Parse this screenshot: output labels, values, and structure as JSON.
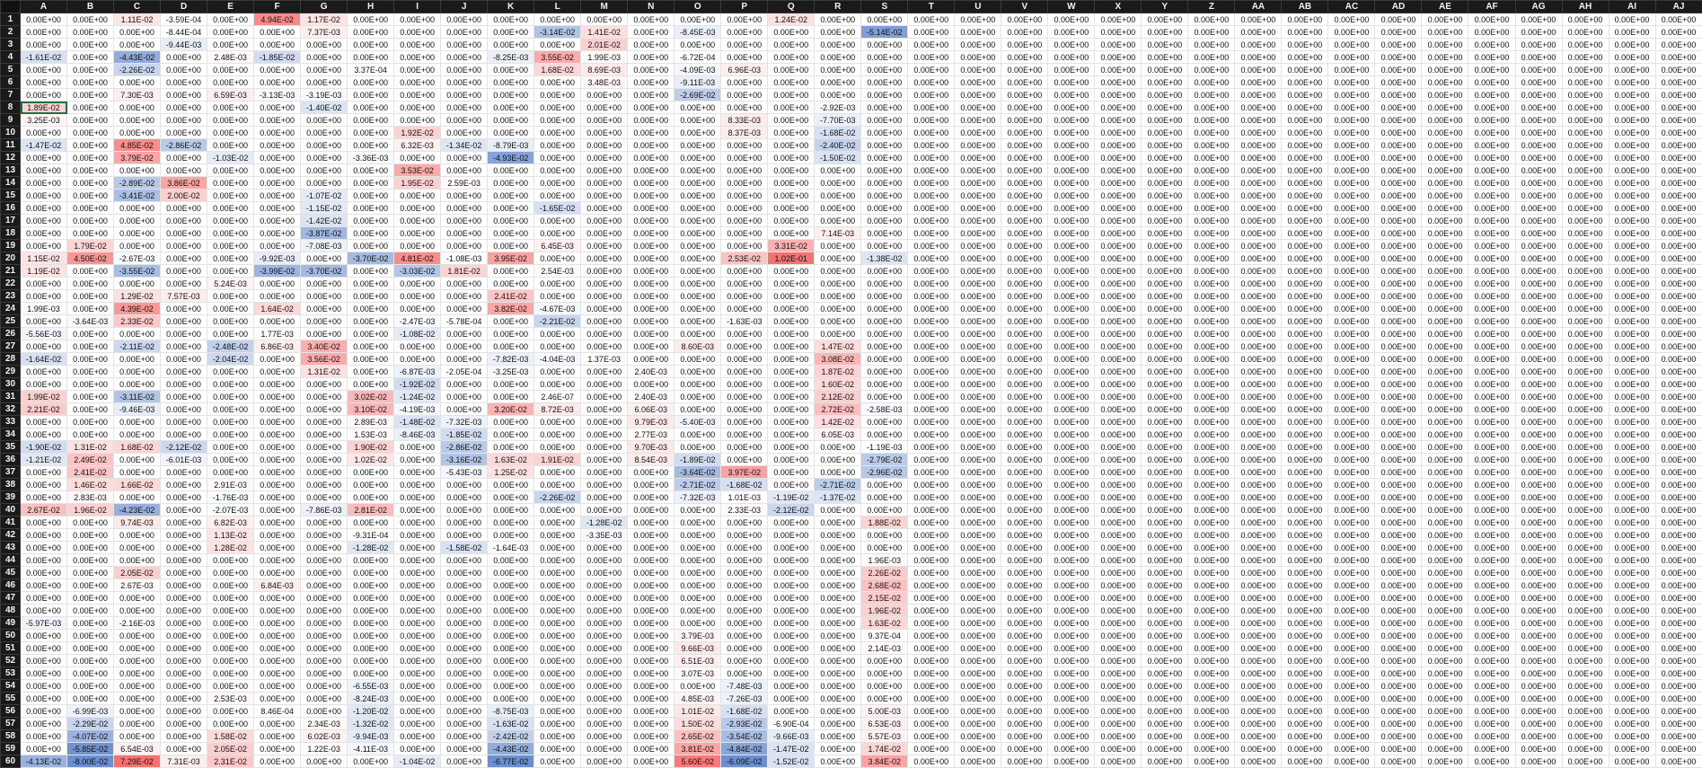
{
  "sheet": {
    "columns": [
      "A",
      "B",
      "C",
      "D",
      "E",
      "F",
      "G",
      "H",
      "I",
      "J",
      "K",
      "L",
      "M",
      "N",
      "O",
      "P",
      "Q",
      "R",
      "S",
      "T",
      "U",
      "V",
      "W",
      "X",
      "Y",
      "Z",
      "AA",
      "AB",
      "AC",
      "AD",
      "AE",
      "AF",
      "AG",
      "AH",
      "AI",
      "AJ"
    ],
    "colors": {
      "positive_strong": "#f87171",
      "negative_strong": "#6b8fcf",
      "zero": "#ffffff",
      "grid": "#e3e3e3",
      "header_bg": "#1a1a1a",
      "header_fg": "#f2f2f2",
      "selection": "#217346"
    },
    "selected_cell": "A8",
    "rows": [
      {
        "label": "1",
        "values": {
          "C": "1.11E-02",
          "D": "-3.59E-04",
          "F": "4.94E-02",
          "G": "1.17E-02",
          "Q": "1.24E-02"
        }
      },
      {
        "label": "2",
        "values": {
          "D": "-8.44E-04",
          "G": "7.37E-03",
          "L": "-3.14E-02",
          "M": "1.41E-02",
          "O": "-8.45E-03",
          "S": "-5.14E-02"
        }
      },
      {
        "label": "3",
        "values": {
          "C": "0.00E+00",
          "D": "-9.44E-03",
          "L": "0.00E+00",
          "M": "2.01E-02"
        }
      },
      {
        "label": "4",
        "values": {
          "A": "-1.61E-02",
          "C": "-4.43E-02",
          "E": "2.48E-03",
          "F": "-1.85E-02",
          "K": "-8.25E-03",
          "L": "3.55E-02",
          "M": "1.99E-03",
          "O": "-6.72E-04"
        }
      },
      {
        "label": "5",
        "values": {
          "C": "-2.26E-02",
          "H": "3.37E-04",
          "L": "1.68E-02",
          "M": "8.69E-03",
          "O": "-4.09E-03",
          "P": "6.96E-03"
        }
      },
      {
        "label": "6",
        "values": {
          "M": "3.48E-03",
          "O": "-9.11E-03"
        }
      },
      {
        "label": "7",
        "values": {
          "C": "7.30E-03",
          "E": "6.59E-03",
          "F": "-3.13E-03",
          "G": "-3.19E-03",
          "O": "-2.69E-02"
        }
      },
      {
        "label": "8",
        "values": {
          "A": "1.89E-02",
          "G": "-1.40E-02",
          "R": "-2.92E-03"
        }
      },
      {
        "label": "9",
        "values": {
          "A": "3.25E-03",
          "P": "8.33E-03",
          "R": "-7.70E-03"
        }
      },
      {
        "label": "10",
        "values": {
          "I": "1.92E-02",
          "P": "8.37E-03",
          "R": "-1.68E-02"
        }
      },
      {
        "label": "11",
        "values": {
          "A": "-1.47E-02",
          "C": "4.85E-02",
          "D": "-2.86E-02",
          "I": "6.32E-03",
          "J": "-1.34E-02",
          "K": "-8.79E-03",
          "R": "-2.40E-02"
        }
      },
      {
        "label": "12",
        "values": {
          "C": "3.79E-02",
          "E": "-1.03E-02",
          "H": "-3.36E-03",
          "K": "-4.93E-02",
          "R": "-1.50E-02"
        }
      },
      {
        "label": "13",
        "values": {
          "I": "3.53E-02"
        }
      },
      {
        "label": "14",
        "values": {
          "C": "-2.89E-02",
          "D": "3.86E-02",
          "I": "1.95E-02",
          "J": "2.59E-03"
        }
      },
      {
        "label": "15",
        "values": {
          "C": "-3.41E-02",
          "D": "2.00E-02",
          "G": "-1.07E-02"
        }
      },
      {
        "label": "16",
        "values": {
          "G": "-1.15E-02",
          "L": "-1.65E-02"
        }
      },
      {
        "label": "17",
        "values": {
          "G": "-1.42E-02"
        }
      },
      {
        "label": "18",
        "values": {
          "G": "-3.87E-02",
          "R": "7.14E-03"
        }
      },
      {
        "label": "19",
        "values": {
          "B": "1.79E-02",
          "G": "-7.08E-03",
          "L": "6.45E-03",
          "Q": "3.31E-02"
        }
      },
      {
        "label": "20",
        "values": {
          "A": "1.15E-02",
          "B": "4.50E-02",
          "C": "-2.67E-03",
          "F": "-9.92E-03",
          "H": "-3.70E-02",
          "I": "4.81E-02",
          "J": "-1.08E-03",
          "K": "3.95E-02",
          "P": "2.53E-02",
          "Q": "1.02E-01",
          "S": "-1.38E-02"
        }
      },
      {
        "label": "21",
        "values": {
          "A": "1.19E-02",
          "C": "-3.55E-02",
          "F": "-3.99E-02",
          "G": "-3.70E-02",
          "I": "-3.03E-02",
          "J": "1.81E-02",
          "L": "2.54E-03"
        }
      },
      {
        "label": "22",
        "values": {
          "E": "5.24E-03"
        }
      },
      {
        "label": "23",
        "values": {
          "C": "1.29E-02",
          "D": "7.57E-03",
          "K": "2.41E-02"
        }
      },
      {
        "label": "24",
        "values": {
          "A": "1.99E-03",
          "C": "4.39E-02",
          "F": "1.64E-02",
          "K": "3.82E-02",
          "L": "-4.67E-03"
        }
      },
      {
        "label": "25",
        "values": {
          "B": "-3.64E-03",
          "C": "2.33E-02",
          "I": "-2.47E-03",
          "J": "-5.78E-04",
          "L": "-2.21E-02",
          "P": "-1.63E-03"
        }
      },
      {
        "label": "26",
        "values": {
          "A": "-5.56E-03",
          "F": "1.77E-03",
          "I": "-1.08E-02"
        }
      },
      {
        "label": "27",
        "values": {
          "C": "-2.11E-02",
          "E": "-2.48E-02",
          "F": "6.86E-03",
          "G": "3.40E-02",
          "O": "8.60E-03",
          "R": "1.47E-02"
        }
      },
      {
        "label": "28",
        "values": {
          "A": "-1.64E-02",
          "E": "-2.04E-02",
          "G": "3.56E-02",
          "K": "-7.82E-03",
          "L": "-4.04E-03",
          "M": "1.37E-03",
          "R": "3.08E-02"
        }
      },
      {
        "label": "29",
        "values": {
          "G": "1.31E-02",
          "I": "-6.87E-03",
          "J": "-2.05E-04",
          "K": "-3.25E-03",
          "N": "2.40E-03",
          "R": "1.87E-02"
        }
      },
      {
        "label": "30",
        "values": {
          "I": "-1.92E-02",
          "R": "1.60E-02"
        }
      },
      {
        "label": "31",
        "values": {
          "A": "1.99E-02",
          "C": "-3.11E-02",
          "H": "3.02E-02",
          "I": "-1.24E-02",
          "L": "2.46E-07",
          "N": "2.40E-03",
          "R": "2.12E-02"
        }
      },
      {
        "label": "32",
        "values": {
          "A": "2.21E-02",
          "C": "-9.46E-03",
          "H": "3.10E-02",
          "I": "-4.19E-03",
          "K": "3.20E-02",
          "L": "8.72E-03",
          "N": "6.06E-03",
          "R": "2.72E-02",
          "S": "-2.58E-03"
        }
      },
      {
        "label": "33",
        "values": {
          "H": "2.89E-03",
          "I": "-1.48E-02",
          "J": "-7.32E-03",
          "N": "9.79E-03",
          "O": "-5.40E-03",
          "R": "1.42E-02"
        }
      },
      {
        "label": "34",
        "values": {
          "H": "1.53E-03",
          "I": "-8.46E-03",
          "J": "-1.85E-02",
          "N": "2.77E-03",
          "R": "6.05E-03"
        }
      },
      {
        "label": "35",
        "values": {
          "A": "-1.90E-02",
          "B": "1.31E-02",
          "C": "1.68E-02",
          "D": "-2.12E-02",
          "H": "1.90E-02",
          "J": "-2.86E-02",
          "N": "9.70E-03",
          "S": "-1.19E-03"
        }
      },
      {
        "label": "36",
        "values": {
          "A": "-1.21E-02",
          "B": "2.49E-02",
          "D": "-6.01E-03",
          "H": "1.02E-02",
          "J": "-3.16E-02",
          "K": "1.63E-02",
          "L": "1.91E-02",
          "N": "8.54E-03",
          "O": "-1.89E-02",
          "S": "-2.79E-02"
        }
      },
      {
        "label": "37",
        "values": {
          "B": "2.41E-02",
          "J": "-5.43E-03",
          "K": "1.25E-02",
          "O": "-3.64E-02",
          "P": "3.97E-02",
          "S": "-2.96E-02"
        }
      },
      {
        "label": "38",
        "values": {
          "B": "1.46E-02",
          "C": "1.66E-02",
          "E": "2.91E-03",
          "O": "-2.71E-02",
          "P": "-1.68E-02",
          "R": "-2.71E-02"
        }
      },
      {
        "label": "39",
        "values": {
          "B": "2.83E-03",
          "E": "-1.76E-03",
          "L": "-2.26E-02",
          "O": "-7.32E-03",
          "P": "1.01E-03",
          "Q": "-1.19E-02",
          "R": "-1.37E-02"
        }
      },
      {
        "label": "40",
        "values": {
          "A": "2.67E-02",
          "B": "1.96E-02",
          "C": "-4.23E-02",
          "E": "-2.07E-03",
          "G": "-7.86E-03",
          "H": "2.81E-02",
          "P": "2.33E-03",
          "Q": "-2.12E-02"
        }
      },
      {
        "label": "41",
        "values": {
          "C": "9.74E-03",
          "E": "6.82E-03",
          "M": "-1.28E-02",
          "S": "1.88E-02"
        }
      },
      {
        "label": "42",
        "values": {
          "E": "1.13E-02",
          "H": "-9.31E-04",
          "M": "-3.35E-03"
        }
      },
      {
        "label": "43",
        "values": {
          "E": "1.28E-02",
          "H": "-1.28E-02",
          "J": "-1.58E-02",
          "K": "-1.64E-03"
        }
      },
      {
        "label": "44",
        "values": {
          "S": "1.96E-03"
        }
      },
      {
        "label": "45",
        "values": {
          "C": "2.05E-02",
          "S": "2.26E-02"
        }
      },
      {
        "label": "46",
        "values": {
          "C": "2.67E-03",
          "F": "6.84E-03",
          "S": "2.68E-02"
        }
      },
      {
        "label": "47",
        "values": {
          "S": "2.15E-02"
        }
      },
      {
        "label": "48",
        "values": {
          "S": "1.96E-02"
        }
      },
      {
        "label": "49",
        "values": {
          "A": "-5.97E-03",
          "C": "-2.16E-03",
          "S": "1.63E-02"
        }
      },
      {
        "label": "50",
        "values": {
          "O": "3.79E-03",
          "S": "9.37E-04"
        }
      },
      {
        "label": "51",
        "values": {
          "O": "9.66E-03",
          "S": "2.14E-03"
        }
      },
      {
        "label": "52",
        "values": {
          "O": "6.51E-03"
        }
      },
      {
        "label": "53",
        "values": {
          "O": "3.07E-03"
        }
      },
      {
        "label": "54",
        "values": {
          "H": "-6.55E-03",
          "P": "-7.48E-03"
        }
      },
      {
        "label": "55",
        "values": {
          "E": "2.53E-03",
          "H": "-8.24E-03",
          "O": "4.85E-03",
          "P": "-7.26E-03"
        }
      },
      {
        "label": "56",
        "values": {
          "B": "-6.99E-03",
          "F": "8.46E-04",
          "H": "-1.20E-02",
          "K": "-8.75E-03",
          "O": "1.01E-02",
          "P": "-1.68E-02",
          "S": "5.00E-03"
        }
      },
      {
        "label": "57",
        "values": {
          "B": "-2.29E-02",
          "G": "2.34E-03",
          "H": "-1.32E-02",
          "K": "-1.63E-02",
          "O": "1.50E-02",
          "P": "-2.93E-02",
          "Q": "-6.90E-04",
          "S": "6.53E-03"
        }
      },
      {
        "label": "58",
        "values": {
          "B": "-4.07E-02",
          "E": "1.58E-02",
          "G": "6.02E-03",
          "H": "-9.94E-03",
          "K": "-2.42E-02",
          "O": "2.65E-02",
          "P": "-3.54E-02",
          "Q": "-9.66E-03",
          "S": "5.57E-03"
        }
      },
      {
        "label": "59",
        "values": {
          "B": "-5.85E-02",
          "C": "6.54E-03",
          "E": "2.05E-02",
          "G": "1.22E-03",
          "H": "-4.11E-03",
          "K": "-4.43E-02",
          "O": "3.81E-02",
          "P": "-4.84E-02",
          "Q": "-1.47E-02",
          "S": "1.74E-02"
        }
      },
      {
        "label": "60",
        "values": {
          "A": "-4.13E-02",
          "B": "-8.00E-02",
          "C": "7.29E-02",
          "D": "7.31E-03",
          "E": "2.31E-02",
          "I": "-1.04E-02",
          "K": "-6.77E-02",
          "O": "5.60E-02",
          "P": "-6.09E-02",
          "Q": "-1.52E-02",
          "S": "3.84E-02"
        }
      }
    ],
    "default_value": "0.00E+00"
  }
}
